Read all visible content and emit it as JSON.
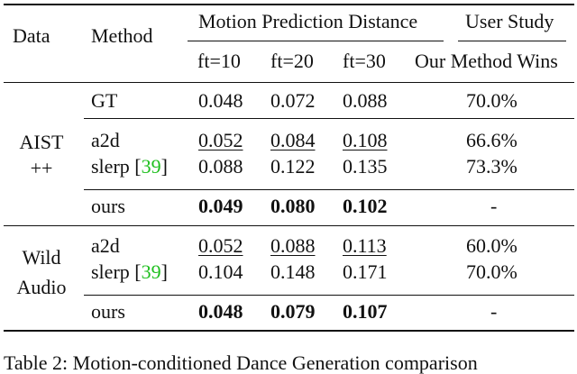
{
  "header": {
    "data": "Data",
    "method": "Method",
    "mpd_group": "Motion Prediction Distance",
    "user_study_group": "User Study",
    "ft10": "ft=10",
    "ft20": "ft=20",
    "ft30": "ft=30",
    "wins": "Our Method Wins"
  },
  "gt": {
    "method": "GT",
    "v1": "0.048",
    "v2": "0.072",
    "v3": "0.088",
    "us": "70.0%"
  },
  "aist": {
    "label_line1": "AIST",
    "label_line2": "++",
    "a2d": {
      "method": "a2d",
      "v1": "0.052",
      "v2": "0.084",
      "v3": "0.108",
      "us": "66.6%"
    },
    "slerp": {
      "method_prefix": "slerp [",
      "cite": "39",
      "method_suffix": "]",
      "v1": "0.088",
      "v2": "0.122",
      "v3": "0.135",
      "us": "73.3%"
    },
    "ours": {
      "method": "ours",
      "v1": "0.049",
      "v2": "0.080",
      "v3": "0.102",
      "us": "-"
    }
  },
  "wild": {
    "label_line1": "Wild",
    "label_line2": "Audio",
    "a2d": {
      "method": "a2d",
      "v1": "0.052",
      "v2": "0.088",
      "v3": "0.113",
      "us": "60.0%"
    },
    "slerp": {
      "method_prefix": "slerp [",
      "cite": "39",
      "method_suffix": "]",
      "v1": "0.104",
      "v2": "0.148",
      "v3": "0.171",
      "us": "70.0%"
    },
    "ours": {
      "method": "ours",
      "v1": "0.048",
      "v2": "0.079",
      "v3": "0.107",
      "us": "-"
    }
  },
  "caption": "Table 2: Motion-conditioned Dance Generation comparison"
}
